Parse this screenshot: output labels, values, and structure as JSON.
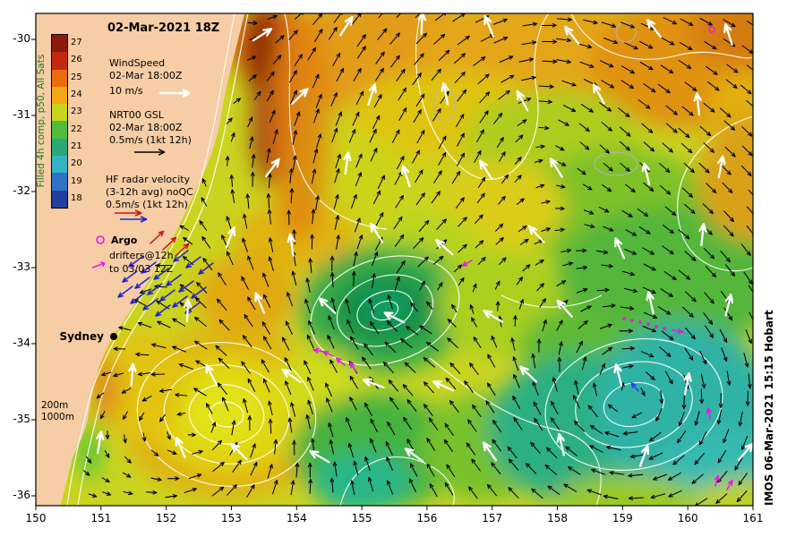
{
  "title": "02-Mar-2021 18Z",
  "colorbar": {
    "label": "Filled 4h comp, p50, All Sats",
    "label_color": "#1f7a1f",
    "ticks": [
      "27",
      "26",
      "25",
      "24",
      "23",
      "22",
      "21",
      "20",
      "19",
      "18"
    ],
    "colors": [
      "#8c1a0a",
      "#c3290e",
      "#ec6a10",
      "#f2a814",
      "#c6d41c",
      "#52bc3a",
      "#2aa878",
      "#32b4c4",
      "#2e72c8",
      "#223f9e"
    ]
  },
  "legend": {
    "wind": {
      "title": "WindSpeed",
      "time": "02-Mar 18:00Z",
      "scale": "10 m/s"
    },
    "gsl": {
      "title": "NRT00 GSL",
      "time": "02-Mar 18:00Z",
      "scale": "0.5m/s (1kt 12h)"
    },
    "hf": {
      "title": "HF radar velocity",
      "subtitle": "(3-12h avg) noQC",
      "scale": "0.5m/s (1kt 12h)"
    },
    "argo": {
      "title": "Argo"
    },
    "drifters": {
      "title": "drifters@12h",
      "subtitle": "to 03/03 12Z"
    }
  },
  "map": {
    "city_label": "Sydney",
    "depth_labels": [
      "200m",
      "1000m"
    ]
  },
  "axes": {
    "x_ticks": [
      "150",
      "151",
      "152",
      "153",
      "154",
      "155",
      "156",
      "157",
      "158",
      "159",
      "160",
      "161"
    ],
    "y_ticks": [
      "-30",
      "-31",
      "-32",
      "-33",
      "-34",
      "-35",
      "-36"
    ]
  },
  "credit": "IMOS 06-Mar-2021 15:15 Hobart",
  "colors": {
    "land": "#f6cda5",
    "magenta_markers": "#e818e8",
    "hf_blue": "#2323cc",
    "hf_red": "#cc1414",
    "wind_arrow": "#ffffff",
    "current_arrow": "#000000",
    "contour": "#ffffff"
  }
}
